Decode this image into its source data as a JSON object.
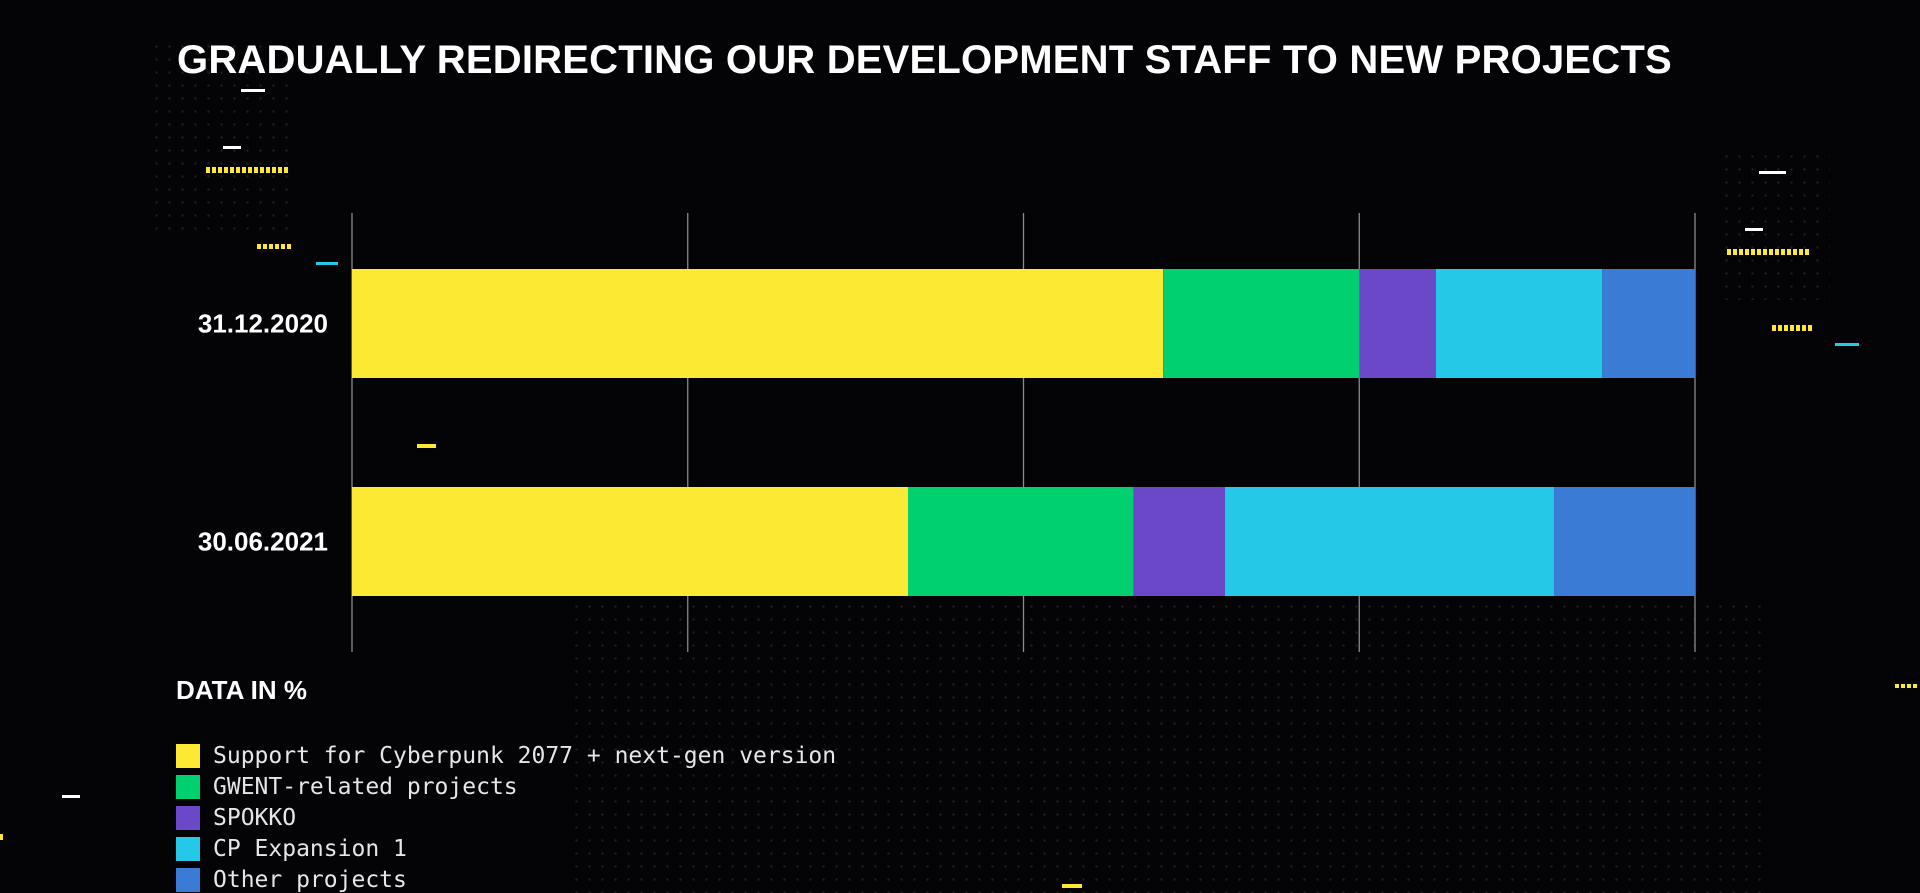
{
  "title": "GRADUALLY REDIRECTING OUR DEVELOPMENT STAFF TO NEW PROJECTS",
  "data_note": "DATA IN %",
  "chart_data": {
    "type": "bar",
    "orientation": "horizontal",
    "stacked": true,
    "title": "GRADUALLY REDIRECTING OUR DEVELOPMENT STAFF TO NEW PROJECTS",
    "xlabel": "",
    "ylabel": "",
    "xlim": [
      0,
      100
    ],
    "xticks": [
      0,
      25,
      50,
      75,
      100
    ],
    "tick_labels_visible": false,
    "grid": "vertical",
    "legend_position": "bottom-left",
    "categories": [
      "31.12.2020",
      "30.06.2021"
    ],
    "series": [
      {
        "name": "Support for Cyberpunk 2077 + next-gen version",
        "color": "#fce934",
        "values": [
          60.4,
          41.4
        ]
      },
      {
        "name": "GWENT-related projects",
        "color": "#00d06e",
        "values": [
          14.6,
          16.8
        ]
      },
      {
        "name": "SPOKKO",
        "color": "#6b48c8",
        "values": [
          5.7,
          6.8
        ]
      },
      {
        "name": "CP Expansion 1",
        "color": "#25c8e6",
        "values": [
          12.4,
          24.5
        ]
      },
      {
        "name": "Other projects",
        "color": "#3a7bd5",
        "values": [
          6.9,
          10.5
        ]
      }
    ]
  },
  "colors": {
    "background": "#040407",
    "gridline": "#8a8a8a",
    "text": "#ffffff",
    "accent_yellow": "#fce934",
    "accent_cyan": "#25c8e6"
  }
}
